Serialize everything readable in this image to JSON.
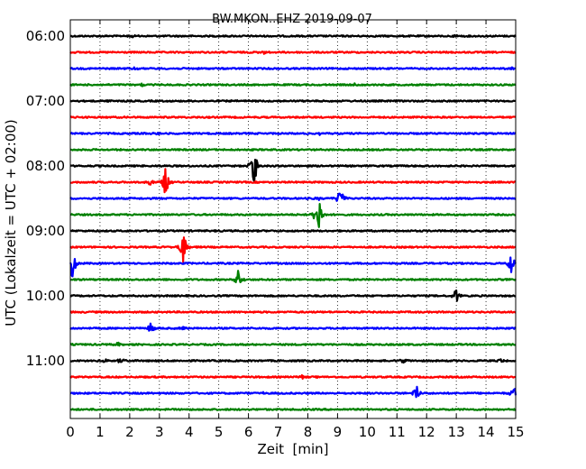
{
  "chart_data": {
    "type": "line",
    "title": "BW.MKON..EHZ 2019-09-07",
    "xlabel": "Zeit  [min]",
    "ylabel": "UTC (Lokalzeit = UTC + 02:00)",
    "xlim": [
      0,
      15
    ],
    "x_ticks": [
      "0",
      "1",
      "2",
      "3",
      "4",
      "5",
      "6",
      "7",
      "8",
      "9",
      "10",
      "11",
      "12",
      "13",
      "14",
      "15"
    ],
    "y_ticks": [
      "06:00",
      "07:00",
      "08:00",
      "09:00",
      "10:00",
      "11:00"
    ],
    "grid_x": true,
    "trace_minutes": 15,
    "colors": [
      "#000000",
      "#ff0000",
      "#0000ff",
      "#008000"
    ],
    "series": [
      {
        "start": "06:00",
        "color_index": 0,
        "events": [
          {
            "x": 2.1,
            "amp": 1.5
          },
          {
            "x": 13.0,
            "amp": 1.5
          }
        ]
      },
      {
        "start": "06:15",
        "color_index": 1,
        "events": [
          {
            "x": 6.5,
            "amp": 1.5
          }
        ]
      },
      {
        "start": "06:30",
        "color_index": 2,
        "events": [
          {
            "x": 2.2,
            "amp": 1.5
          },
          {
            "x": 14.9,
            "amp": 1.5
          }
        ]
      },
      {
        "start": "06:45",
        "color_index": 3,
        "events": [
          {
            "x": 2.4,
            "amp": 2
          },
          {
            "x": 9.6,
            "amp": 1.5
          }
        ]
      },
      {
        "start": "07:00",
        "color_index": 0,
        "events": [
          {
            "x": 1.4,
            "amp": 1.5
          }
        ]
      },
      {
        "start": "07:15",
        "color_index": 1,
        "events": []
      },
      {
        "start": "07:30",
        "color_index": 2,
        "events": [
          {
            "x": 8.4,
            "amp": 2
          },
          {
            "x": 3.0,
            "amp": 1.5
          }
        ]
      },
      {
        "start": "07:45",
        "color_index": 3,
        "events": []
      },
      {
        "start": "08:00",
        "color_index": 0,
        "events": [
          {
            "x": 6.2,
            "amp": 22
          }
        ]
      },
      {
        "start": "08:15",
        "color_index": 1,
        "events": [
          {
            "x": 2.7,
            "amp": 3
          },
          {
            "x": 3.2,
            "amp": 16
          }
        ]
      },
      {
        "start": "08:30",
        "color_index": 2,
        "events": [
          {
            "x": 9.1,
            "amp": 14
          },
          {
            "x": 8.35,
            "amp": 2
          }
        ]
      },
      {
        "start": "08:45",
        "color_index": 3,
        "events": [
          {
            "x": 8.35,
            "amp": 32
          }
        ]
      },
      {
        "start": "09:00",
        "color_index": 0,
        "events": [
          {
            "x": 4.7,
            "amp": 2
          }
        ]
      },
      {
        "start": "09:15",
        "color_index": 1,
        "events": [
          {
            "x": 3.8,
            "amp": 20
          }
        ]
      },
      {
        "start": "09:30",
        "color_index": 2,
        "events": [
          {
            "x": 0.05,
            "amp": 22
          },
          {
            "x": 14.85,
            "amp": 12
          }
        ]
      },
      {
        "start": "09:45",
        "color_index": 3,
        "events": [
          {
            "x": 5.65,
            "amp": 14
          }
        ]
      },
      {
        "start": "10:00",
        "color_index": 0,
        "events": [
          {
            "x": 13.0,
            "amp": 8
          }
        ]
      },
      {
        "start": "10:15",
        "color_index": 1,
        "events": []
      },
      {
        "start": "10:30",
        "color_index": 2,
        "events": [
          {
            "x": 2.7,
            "amp": 7
          },
          {
            "x": 3.8,
            "amp": 2
          }
        ]
      },
      {
        "start": "10:45",
        "color_index": 3,
        "events": [
          {
            "x": 1.6,
            "amp": 2
          }
        ]
      },
      {
        "start": "11:00",
        "color_index": 0,
        "events": [
          {
            "x": 1.2,
            "amp": 3
          },
          {
            "x": 1.7,
            "amp": 3
          },
          {
            "x": 11.2,
            "amp": 3
          },
          {
            "x": 14.5,
            "amp": 2
          }
        ]
      },
      {
        "start": "11:15",
        "color_index": 1,
        "events": [
          {
            "x": 7.8,
            "amp": 2
          }
        ]
      },
      {
        "start": "11:30",
        "color_index": 2,
        "events": [
          {
            "x": 6.5,
            "amp": 2
          },
          {
            "x": 11.65,
            "amp": 10
          },
          {
            "x": 14.95,
            "amp": 7
          }
        ]
      },
      {
        "start": "11:45",
        "color_index": 3,
        "events": []
      }
    ]
  }
}
